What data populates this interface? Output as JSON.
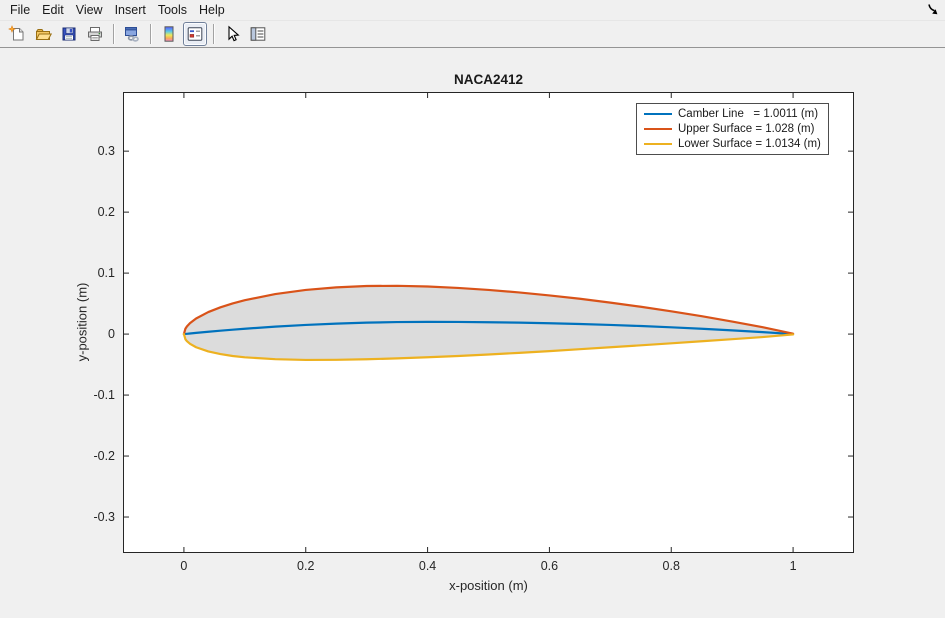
{
  "menubar": {
    "items": [
      "File",
      "Edit",
      "View",
      "Insert",
      "Tools",
      "Help"
    ]
  },
  "toolbar": {
    "items": [
      "new-figure-icon",
      "open-file-icon",
      "save-figure-icon",
      "print-figure-icon",
      "separator",
      "link-plot-icon",
      "separator",
      "insert-colorbar-icon",
      "insert-legend-icon",
      "separator",
      "edit-plot-icon",
      "plot-browser-icon"
    ],
    "active_button": "insert-legend-icon"
  },
  "figure": {
    "title": "NACA2412",
    "xlabel": "x-position (m)",
    "ylabel": "y-position (m)",
    "x_ticks": [
      0,
      0.2,
      0.4,
      0.6,
      0.8,
      1
    ],
    "x_tick_labels": [
      "0",
      "0.2",
      "0.4",
      "0.6",
      "0.8",
      "1"
    ],
    "y_ticks": [
      0.3,
      0.2,
      0.1,
      0,
      -0.1,
      -0.2,
      -0.3
    ],
    "y_tick_labels": [
      "0.3",
      "0.2",
      "0.1",
      "0",
      "-0.1",
      "-0.2",
      "-0.3"
    ],
    "axes_color": "#262626",
    "background": "#ffffff"
  },
  "chart_data": {
    "type": "line",
    "title": "NACA2412",
    "xlabel": "x-position (m)",
    "ylabel": "y-position (m)",
    "xlim": [
      -0.1,
      1.1
    ],
    "ylim": [
      -0.359,
      0.397
    ],
    "grid": false,
    "legend_position": "northeast",
    "fill_color": "#dcdcdc",
    "fill_between": [
      1,
      2
    ],
    "x": [
      0,
      0.0025,
      0.005,
      0.01,
      0.02,
      0.04,
      0.06,
      0.08,
      0.1,
      0.15,
      0.2,
      0.25,
      0.3,
      0.35,
      0.4,
      0.45,
      0.5,
      0.55,
      0.6,
      0.65,
      0.7,
      0.75,
      0.8,
      0.85,
      0.9,
      0.95,
      1
    ],
    "series": [
      {
        "name": "Camber Line",
        "legend_label": "Camber Line   = 1.0011 (m)",
        "color": "#0072BD",
        "y": [
          0,
          0.0002,
          0.0005,
          0.001,
          0.002,
          0.0038,
          0.0056,
          0.0072,
          0.0088,
          0.0122,
          0.015,
          0.0172,
          0.0188,
          0.0197,
          0.02,
          0.0199,
          0.0194,
          0.0188,
          0.0178,
          0.0165,
          0.015,
          0.0132,
          0.0111,
          0.0088,
          0.0061,
          0.0032,
          0
        ]
      },
      {
        "name": "Upper Surface",
        "legend_label": "Upper Surface = 1.028 (m)",
        "color": "#D95319",
        "y": [
          0,
          0.009,
          0.0127,
          0.018,
          0.0256,
          0.0361,
          0.0439,
          0.0503,
          0.0556,
          0.0656,
          0.0724,
          0.0766,
          0.0788,
          0.0792,
          0.078,
          0.0757,
          0.0724,
          0.0683,
          0.0634,
          0.0579,
          0.0516,
          0.0448,
          0.0373,
          0.0293,
          0.0206,
          0.0113,
          0.0006
        ]
      },
      {
        "name": "Lower Surface",
        "legend_label": "Lower Surface = 1.0134 (m)",
        "color": "#EDB120",
        "y": [
          0,
          -0.0085,
          -0.0117,
          -0.016,
          -0.0216,
          -0.0285,
          -0.0328,
          -0.0359,
          -0.0381,
          -0.0412,
          -0.0424,
          -0.0422,
          -0.0413,
          -0.0398,
          -0.038,
          -0.0359,
          -0.0335,
          -0.0308,
          -0.0279,
          -0.0248,
          -0.0216,
          -0.0184,
          -0.0151,
          -0.0118,
          -0.0084,
          -0.0049,
          -0.0006
        ]
      }
    ]
  }
}
